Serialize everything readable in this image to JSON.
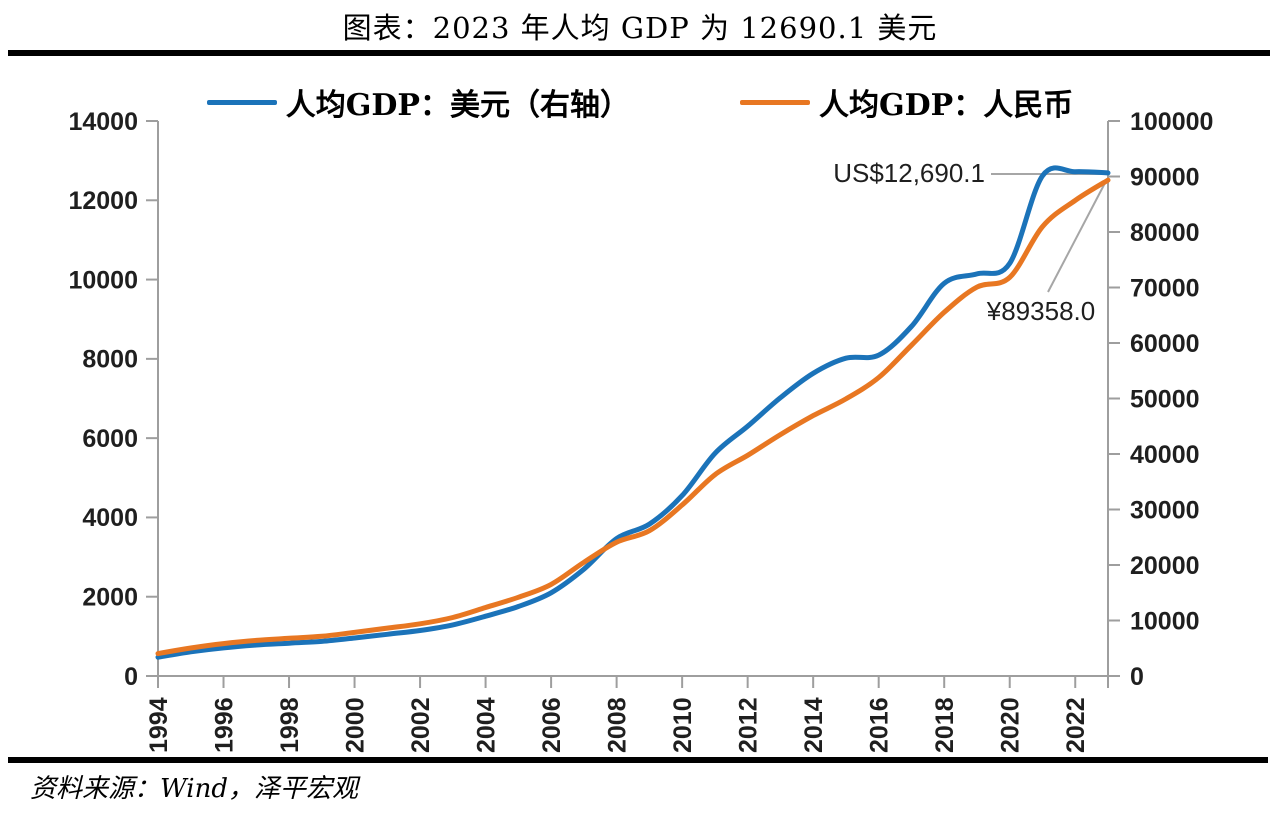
{
  "title": "图表：2023 年人均 GDP 为 12690.1 美元",
  "source_note": "资料来源：Wind，泽平宏观",
  "legend": {
    "items": [
      {
        "label": "人均GDP：美元（右轴）",
        "color": "#1b73b9"
      },
      {
        "label": "人均GDP：人民币",
        "color": "#e87722"
      }
    ]
  },
  "colors": {
    "usd_line": "#1b73b9",
    "rmb_line": "#e87722",
    "axis": "#9e9e9e",
    "tick_label": "#1f1f1f",
    "annotation_text": "#595959",
    "connector": "#a6a6a6",
    "rule": "#000000"
  },
  "chart_data": {
    "type": "line",
    "title": "图表：2023 年人均 GDP 为 12690.1 美元",
    "x": [
      1994,
      1995,
      1996,
      1997,
      1998,
      1999,
      2000,
      2001,
      2002,
      2003,
      2004,
      2005,
      2006,
      2007,
      2008,
      2009,
      2010,
      2011,
      2012,
      2013,
      2014,
      2015,
      2016,
      2017,
      2018,
      2019,
      2020,
      2021,
      2022,
      2023
    ],
    "x_tick_labels": [
      "1994",
      "1996",
      "1998",
      "2000",
      "2002",
      "2004",
      "2006",
      "2008",
      "2010",
      "2012",
      "2014",
      "2016",
      "2018",
      "2020",
      "2022"
    ],
    "series": [
      {
        "name": "人均GDP：美元（右轴）",
        "axis": "left",
        "color": "#1b73b9",
        "values": [
          473.1,
          609.7,
          709.4,
          781.7,
          828.6,
          873.3,
          959.4,
          1053.1,
          1148.5,
          1288.6,
          1508.7,
          1753.4,
          2099.2,
          2694.0,
          3468.3,
          3832.2,
          4550.5,
          5614.4,
          6300.6,
          7020.4,
          7636.1,
          8016.4,
          8094.4,
          8817.0,
          9905.4,
          10143.8,
          10408.7,
          12617.5,
          12720.2,
          12690.1
        ]
      },
      {
        "name": "人均GDP：人民币",
        "axis": "right",
        "color": "#e87722",
        "values": [
          4044,
          5046,
          5846,
          6420,
          6796,
          7159,
          7858,
          8622,
          9398,
          10542,
          12336,
          14185,
          16500,
          20494,
          24100,
          26180,
          30808,
          36277,
          39771,
          43497,
          46912,
          49922,
          53783,
          59592,
          65534,
          70078,
          71828,
          80976,
          85698,
          89358
        ]
      }
    ],
    "left_axis": {
      "min": 0,
      "max": 14000,
      "step": 2000
    },
    "right_axis": {
      "min": 0,
      "max": 100000,
      "step": 10000
    },
    "grid": false,
    "legend_position": "top",
    "annotations": [
      {
        "text": "US$12,690.1",
        "series": "人均GDP：美元（右轴）",
        "year": 2023,
        "value": 12690.1
      },
      {
        "text": "¥89358.0",
        "series": "人均GDP：人民币",
        "year": 2023,
        "value": 89358.0
      }
    ]
  }
}
